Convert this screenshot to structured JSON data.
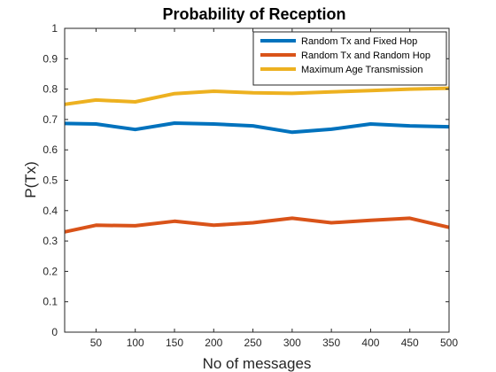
{
  "chart_data": {
    "type": "line",
    "title": "Probability of Reception",
    "xlabel": "No of messages",
    "ylabel": "P(Tx)",
    "xlim": [
      10,
      500
    ],
    "ylim": [
      0,
      1
    ],
    "xticks": [
      50,
      100,
      150,
      200,
      250,
      300,
      350,
      400,
      450,
      500
    ],
    "yticks": [
      0,
      0.1,
      0.2,
      0.3,
      0.4,
      0.5,
      0.6,
      0.7,
      0.8,
      0.9,
      1
    ],
    "ytick_labels": [
      "0",
      "0.1",
      "0.2",
      "0.3",
      "0.4",
      "0.5",
      "0.6",
      "0.7",
      "0.8",
      "0.9",
      "1"
    ],
    "grid": false,
    "legend_position": "top-right",
    "x": [
      10,
      50,
      100,
      150,
      200,
      250,
      300,
      350,
      400,
      450,
      500
    ],
    "series": [
      {
        "name": "Random Tx and Fixed Hop",
        "color": "#0072BD",
        "values": [
          0.687,
          0.685,
          0.667,
          0.688,
          0.685,
          0.679,
          0.658,
          0.668,
          0.685,
          0.679,
          0.676
        ]
      },
      {
        "name": "Random Tx and Random Hop",
        "color": "#D95319",
        "values": [
          0.33,
          0.352,
          0.35,
          0.365,
          0.352,
          0.36,
          0.375,
          0.36,
          0.368,
          0.375,
          0.345
        ]
      },
      {
        "name": "Maximum Age Transmission",
        "color": "#EDB120",
        "values": [
          0.75,
          0.764,
          0.758,
          0.785,
          0.793,
          0.788,
          0.786,
          0.791,
          0.795,
          0.8,
          0.803
        ]
      }
    ]
  }
}
